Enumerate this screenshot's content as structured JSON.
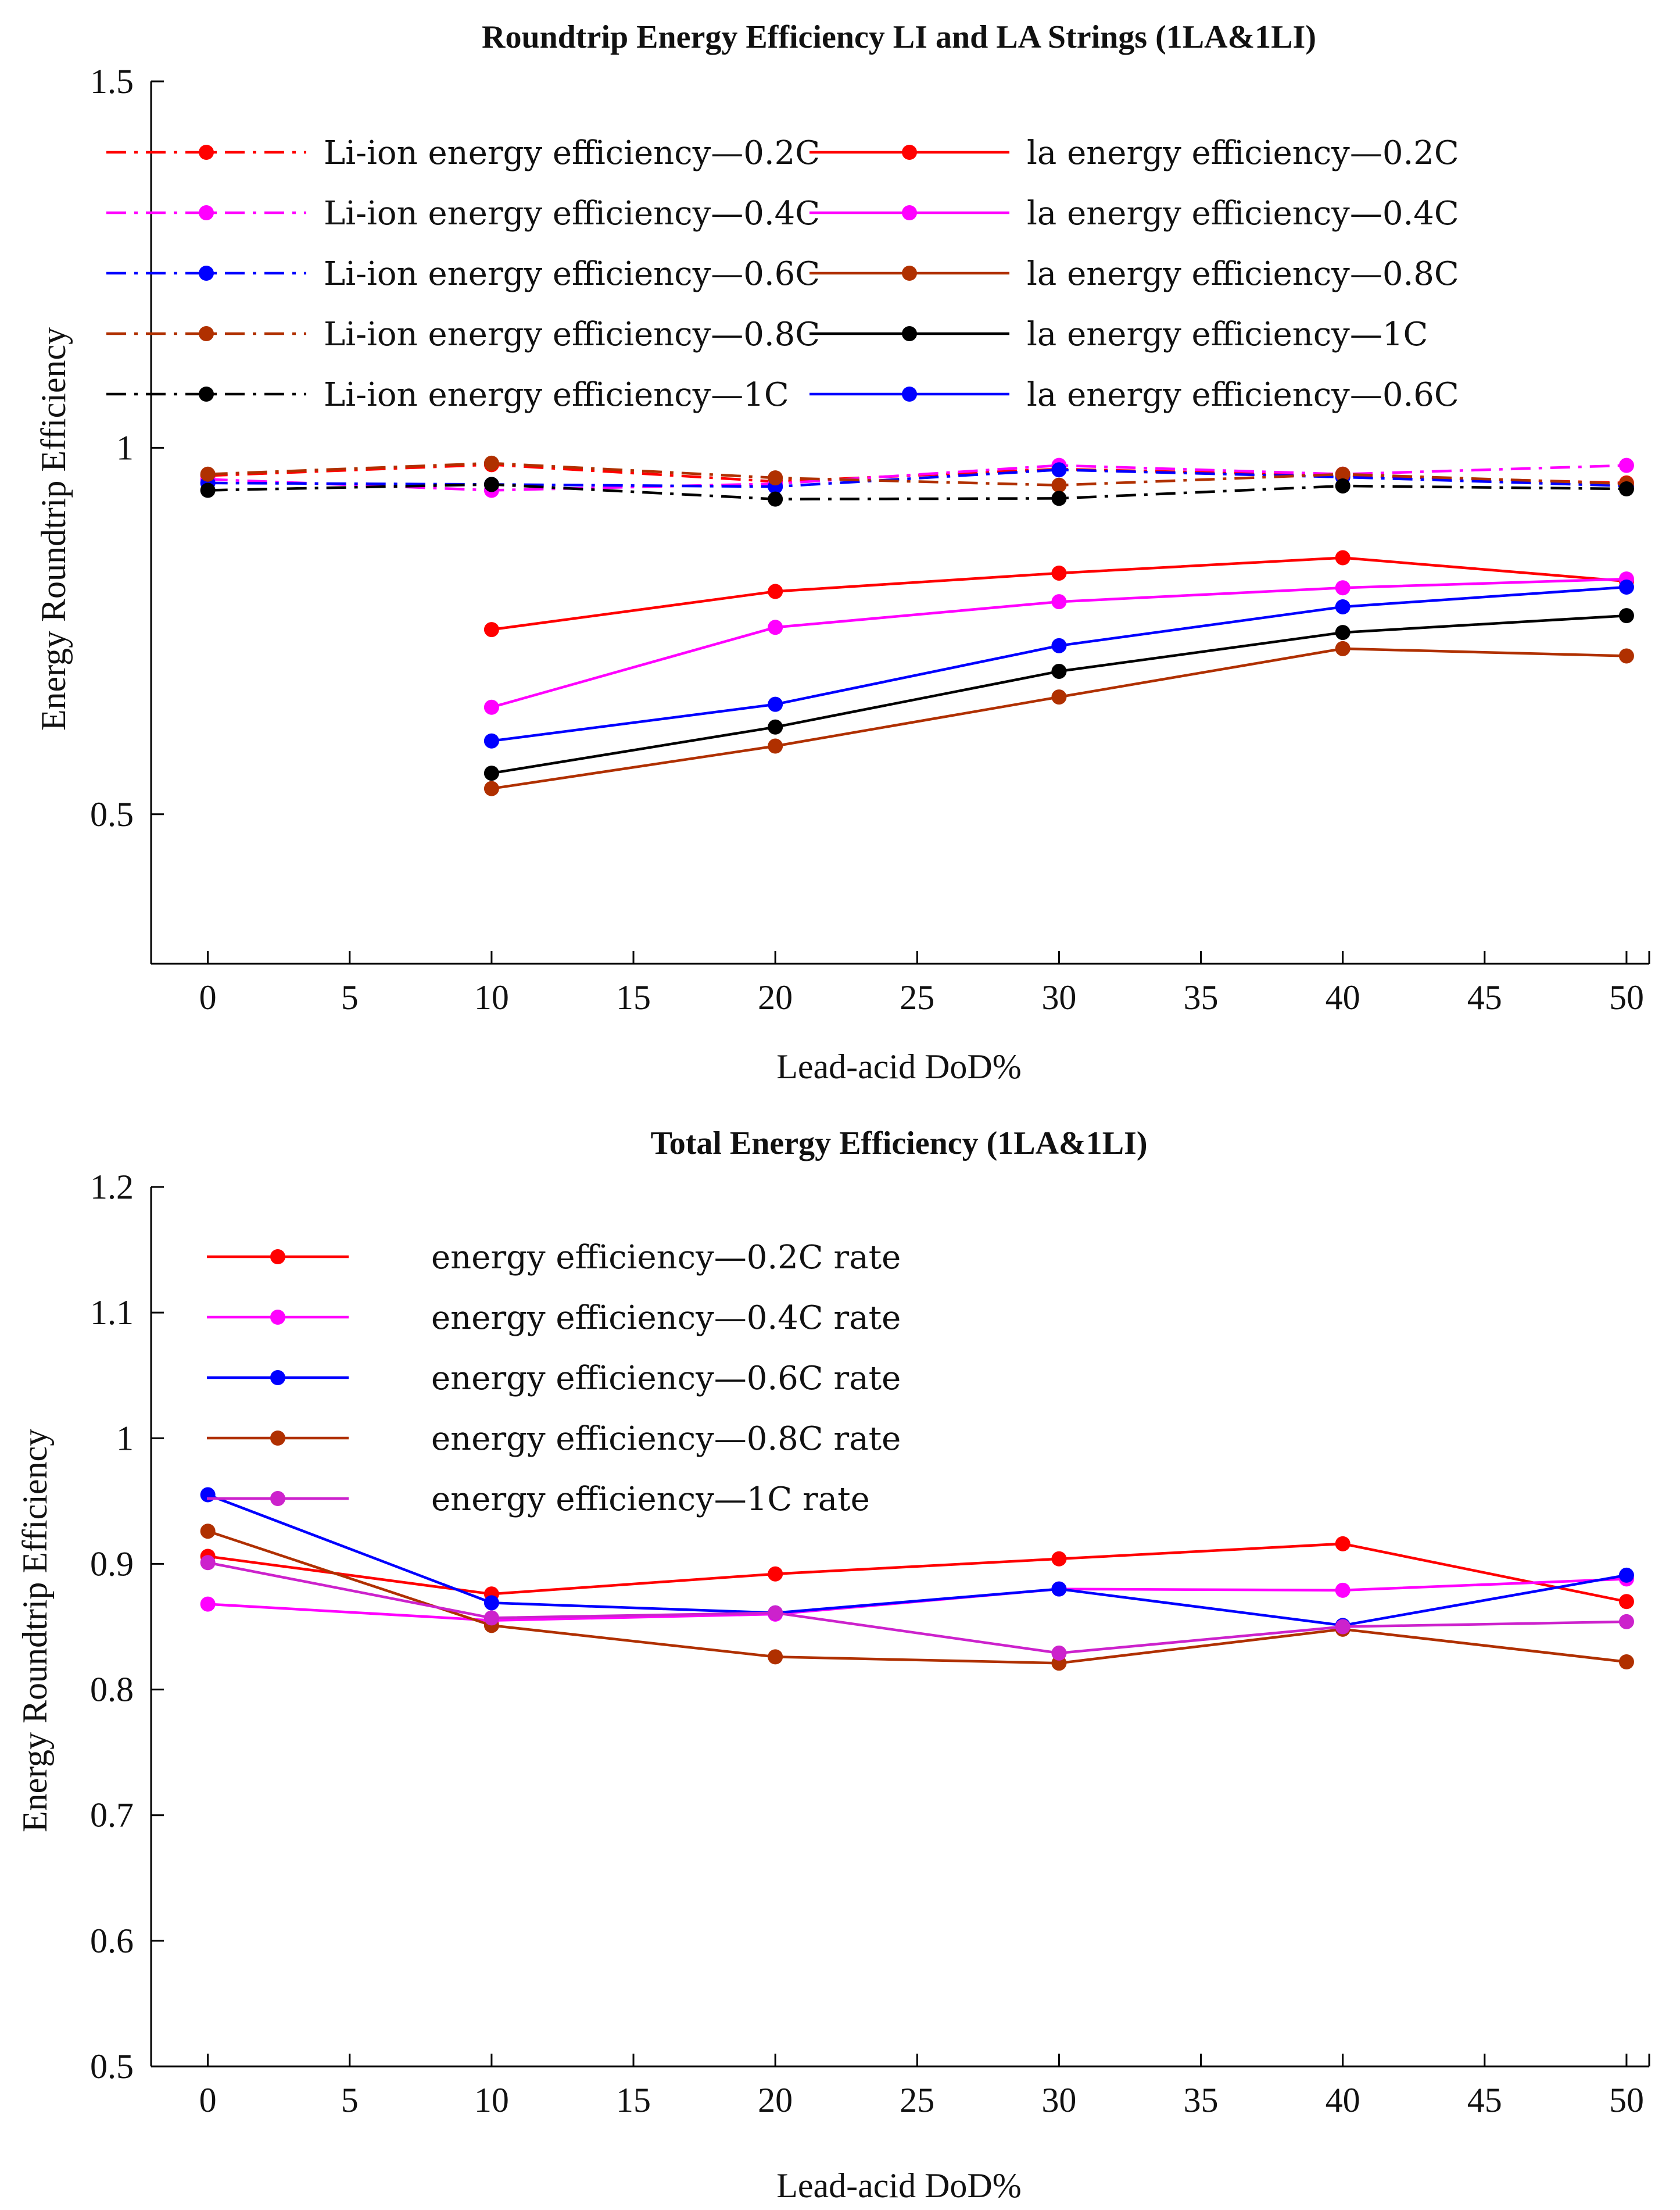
{
  "chart_data": [
    {
      "type": "line",
      "title": "Roundtrip Energy Efficiency LI and LA Strings (1LA&1LI)",
      "xlabel": "Lead-acid DoD%",
      "ylabel": "Energy Roundtrip Efficiency",
      "xlim": [
        -2,
        50.8
      ],
      "ylim": [
        0.296,
        1.5
      ],
      "xticks": [
        0,
        5,
        10,
        15,
        20,
        25,
        30,
        35,
        40,
        45,
        50
      ],
      "xtick_labels": [
        "0",
        "5",
        "10",
        "15",
        "20",
        "25",
        "30",
        "35",
        "40",
        "45",
        "50"
      ],
      "yticks": [
        0.5,
        1,
        1.5
      ],
      "ytick_labels": [
        "0.5",
        "1",
        "1.5"
      ],
      "grid": false,
      "legend_position": "top",
      "series": [
        {
          "name": "Li-ion energy efficiency—0.2C",
          "color": "#ff0000",
          "dash": "dashdot",
          "x": [
            0,
            10,
            20,
            30,
            40,
            50
          ],
          "values": [
            0.962,
            0.977,
            0.954,
            0.971,
            0.962,
            0.952
          ]
        },
        {
          "name": "Li-ion energy efficiency—0.4C",
          "color": "#ff00ff",
          "dash": "dashdot",
          "x": [
            0,
            10,
            20,
            30,
            40,
            50
          ],
          "values": [
            0.957,
            0.942,
            0.951,
            0.976,
            0.964,
            0.976
          ]
        },
        {
          "name": "Li-ion energy efficiency—0.6C",
          "color": "#0000ff",
          "dash": "dashdot",
          "x": [
            0,
            10,
            20,
            30,
            40,
            50
          ],
          "values": [
            0.952,
            0.95,
            0.947,
            0.97,
            0.96,
            0.948
          ]
        },
        {
          "name": "Li-ion energy efficiency—0.8C",
          "color": "#b03000",
          "dash": "dashdot",
          "x": [
            0,
            10,
            20,
            30,
            40,
            50
          ],
          "values": [
            0.964,
            0.979,
            0.959,
            0.949,
            0.964,
            0.951
          ]
        },
        {
          "name": "Li-ion energy efficiency—1C",
          "color": "#000000",
          "dash": "dashdot",
          "x": [
            0,
            10,
            20,
            30,
            40,
            50
          ],
          "values": [
            0.942,
            0.95,
            0.93,
            0.931,
            0.948,
            0.944
          ]
        },
        {
          "name": "la energy efficiency—0.2C",
          "color": "#ff0000",
          "dash": "solid",
          "x": [
            10,
            20,
            30,
            40,
            50
          ],
          "values": [
            0.752,
            0.804,
            0.829,
            0.85,
            0.818
          ]
        },
        {
          "name": "la energy efficiency—0.4C",
          "color": "#ff00ff",
          "dash": "solid",
          "x": [
            10,
            20,
            30,
            40,
            50
          ],
          "values": [
            0.646,
            0.755,
            0.79,
            0.809,
            0.821
          ]
        },
        {
          "name": "la energy efficiency—0.8C",
          "color": "#b03000",
          "dash": "solid",
          "x": [
            10,
            20,
            30,
            40,
            50
          ],
          "values": [
            0.535,
            0.593,
            0.66,
            0.726,
            0.716
          ]
        },
        {
          "name": "la energy efficiency—1C",
          "color": "#000000",
          "dash": "solid",
          "x": [
            10,
            20,
            30,
            40,
            50
          ],
          "values": [
            0.556,
            0.619,
            0.695,
            0.748,
            0.771
          ]
        },
        {
          "name": "la energy efficiency—0.6C",
          "color": "#0000ff",
          "dash": "solid",
          "x": [
            10,
            20,
            30,
            40,
            50
          ],
          "values": [
            0.6,
            0.65,
            0.73,
            0.783,
            0.81
          ]
        }
      ]
    },
    {
      "type": "line",
      "title": "Total Energy Efficiency (1LA&1LI)",
      "xlabel": "Lead-acid DoD%",
      "ylabel": "Energy Roundtrip Efficiency",
      "xlim": [
        -2,
        50.8
      ],
      "ylim": [
        0.5,
        1.2
      ],
      "xticks": [
        0,
        5,
        10,
        15,
        20,
        25,
        30,
        35,
        40,
        45,
        50
      ],
      "xtick_labels": [
        "0",
        "5",
        "10",
        "15",
        "20",
        "25",
        "30",
        "35",
        "40",
        "45",
        "50"
      ],
      "yticks": [
        0.5,
        0.6,
        0.7,
        0.8,
        0.9,
        1.0,
        1.1,
        1.2
      ],
      "ytick_labels": [
        "0.5",
        "0.6",
        "0.7",
        "0.8",
        "0.9",
        "1",
        "1.1",
        "1.2"
      ],
      "grid": false,
      "legend_position": "top-left",
      "series": [
        {
          "name": "energy efficiency—0.2C rate",
          "color": "#ff0000",
          "dash": "solid",
          "x": [
            0,
            10,
            20,
            30,
            40,
            50
          ],
          "values": [
            0.906,
            0.876,
            0.892,
            0.904,
            0.916,
            0.87
          ]
        },
        {
          "name": "energy efficiency—0.4C rate",
          "color": "#ff00ff",
          "dash": "solid",
          "x": [
            0,
            10,
            20,
            30,
            40,
            50
          ],
          "values": [
            0.868,
            0.855,
            0.86,
            0.88,
            0.879,
            0.888
          ]
        },
        {
          "name": "energy efficiency—0.6C rate",
          "color": "#0000ff",
          "dash": "solid",
          "x": [
            0,
            10,
            20,
            30,
            40,
            50
          ],
          "values": [
            0.955,
            0.869,
            0.861,
            0.88,
            0.851,
            0.891
          ]
        },
        {
          "name": "energy efficiency—0.8C rate",
          "color": "#b03000",
          "dash": "solid",
          "x": [
            0,
            10,
            20,
            30,
            40,
            50
          ],
          "values": [
            0.926,
            0.851,
            0.826,
            0.821,
            0.848,
            0.822
          ]
        },
        {
          "name": "energy efficiency—1C rate",
          "color": "#cc22cc",
          "dash": "solid",
          "x": [
            0,
            10,
            20,
            30,
            40,
            50
          ],
          "values": [
            0.901,
            0.857,
            0.861,
            0.829,
            0.85,
            0.854
          ]
        }
      ]
    }
  ]
}
